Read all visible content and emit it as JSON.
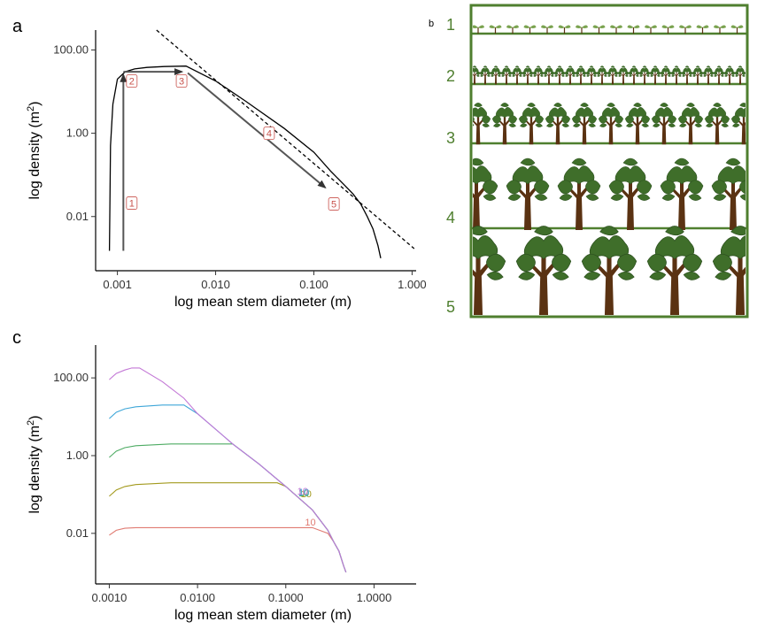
{
  "chart_data": [
    {
      "panel": "a",
      "type": "line",
      "xlabel": "log mean stem diameter (m)",
      "ylabel": "log density  (m²)",
      "ylabel_main": "log density  (m",
      "ylabel_sup": "2",
      "ylabel_end": ")",
      "xscale": "log",
      "yscale": "log",
      "xlim": [
        0.0006,
        1.1
      ],
      "ylim": [
        0.0005,
        300
      ],
      "xticks": [
        0.001,
        0.01,
        0.1,
        1.0
      ],
      "xtick_labels": [
        "0.001",
        "0.010",
        "0.100",
        "1.000"
      ],
      "yticks": [
        0.01,
        1.0,
        100.0
      ],
      "ytick_labels": [
        "0.01",
        "1.00",
        "100.00"
      ],
      "series": [
        {
          "style": "solid",
          "x": [
            0.00083,
            0.00085,
            0.0009,
            0.001,
            0.0012,
            0.0015,
            0.002,
            0.003,
            0.005,
            0.01,
            0.02,
            0.05,
            0.1,
            0.15,
            0.2,
            0.25,
            0.3,
            0.35,
            0.4,
            0.45,
            0.48
          ],
          "y": [
            0.0015,
            0.5,
            5,
            20,
            30,
            35,
            38,
            40,
            41,
            18,
            6,
            1.3,
            0.35,
            0.12,
            0.06,
            0.035,
            0.02,
            0.01,
            0.005,
            0.002,
            0.001
          ]
        },
        {
          "style": "dashed",
          "x": [
            0.0025,
            1.05
          ],
          "y": [
            300,
            0.0017
          ]
        }
      ],
      "arrows": [
        {
          "from": [
            0.00115,
            0.0015
          ],
          "to": [
            0.00115,
            25
          ]
        },
        {
          "from": [
            0.00115,
            30
          ],
          "to": [
            0.0045,
            30
          ]
        },
        {
          "from": [
            0.0052,
            28
          ],
          "to": [
            0.13,
            0.05
          ]
        }
      ],
      "step_labels": [
        {
          "text": "1",
          "x": 0.0014,
          "y": 0.021
        },
        {
          "text": "2",
          "x": 0.0014,
          "y": 18
        },
        {
          "text": "3",
          "x": 0.0045,
          "y": 18
        },
        {
          "text": "4",
          "x": 0.035,
          "y": 1.0
        },
        {
          "text": "5",
          "x": 0.16,
          "y": 0.02
        }
      ]
    },
    {
      "panel": "c",
      "type": "line",
      "xlabel": "log mean stem diameter (m)",
      "ylabel": "log density  (m²)",
      "ylabel_main": "log density  (m",
      "ylabel_sup": "2",
      "ylabel_end": ")",
      "xscale": "log",
      "yscale": "log",
      "xlim": [
        0.0007,
        3.0
      ],
      "ylim": [
        0.0005,
        700
      ],
      "xticks": [
        0.001,
        0.01,
        0.1,
        1.0
      ],
      "xtick_labels": [
        "0.0010",
        "0.0100",
        "0.1000",
        "1.0000"
      ],
      "yticks": [
        0.01,
        1.0,
        100.0
      ],
      "ytick_labels": [
        "0.01",
        "1.00",
        "100.00"
      ],
      "series": [
        {
          "color": "#e07b72",
          "x": [
            0.001,
            0.0012,
            0.0015,
            0.002,
            0.005,
            0.1,
            0.2,
            0.3,
            0.35,
            0.4,
            0.45,
            0.48
          ],
          "y": [
            0.009,
            0.012,
            0.0135,
            0.014,
            0.014,
            0.014,
            0.014,
            0.01,
            0.006,
            0.0035,
            0.0015,
            0.001
          ]
        },
        {
          "color": "#a39a1e",
          "x": [
            0.001,
            0.0012,
            0.0015,
            0.002,
            0.005,
            0.08,
            0.1,
            0.2,
            0.3,
            0.35,
            0.4,
            0.45,
            0.48
          ],
          "y": [
            0.09,
            0.13,
            0.16,
            0.18,
            0.2,
            0.2,
            0.16,
            0.04,
            0.012,
            0.006,
            0.0035,
            0.0015,
            0.001
          ]
        },
        {
          "color": "#4dab63",
          "x": [
            0.001,
            0.0012,
            0.0015,
            0.002,
            0.005,
            0.025,
            0.05,
            0.1,
            0.2,
            0.3,
            0.35,
            0.4,
            0.45,
            0.48
          ],
          "y": [
            0.9,
            1.3,
            1.6,
            1.8,
            2.0,
            2.0,
            0.6,
            0.16,
            0.04,
            0.012,
            0.006,
            0.0035,
            0.0015,
            0.001
          ]
        },
        {
          "color": "#3ea6d8",
          "x": [
            0.001,
            0.0012,
            0.0015,
            0.002,
            0.004,
            0.007,
            0.01,
            0.025,
            0.05,
            0.1,
            0.2,
            0.3,
            0.35,
            0.4,
            0.45,
            0.48
          ],
          "y": [
            9,
            13,
            16,
            18,
            20,
            20,
            12,
            2.0,
            0.6,
            0.16,
            0.04,
            0.012,
            0.006,
            0.0035,
            0.0015,
            0.001
          ]
        },
        {
          "color": "#c378d6",
          "x": [
            0.001,
            0.0012,
            0.0015,
            0.0018,
            0.0022,
            0.004,
            0.007,
            0.01,
            0.025,
            0.05,
            0.1,
            0.2,
            0.3,
            0.35,
            0.4,
            0.45,
            0.48
          ],
          "y": [
            90,
            130,
            160,
            180,
            180,
            80,
            30,
            12,
            2.0,
            0.6,
            0.16,
            0.04,
            0.012,
            0.006,
            0.0035,
            0.0015,
            0.001
          ]
        }
      ],
      "end_labels": [
        {
          "text": "10",
          "x": 0.19,
          "y": 0.016,
          "color": "#e07b72"
        },
        {
          "text": "10",
          "x": 0.17,
          "y": 0.085,
          "color": "#a39a1e"
        },
        {
          "text": "10",
          "x": 0.16,
          "y": 0.09,
          "color": "#4dab63"
        },
        {
          "text": "10",
          "x": 0.16,
          "y": 0.095,
          "color": "#3ea6d8"
        },
        {
          "text": "10",
          "x": 0.155,
          "y": 0.1,
          "color": "#c378d6"
        }
      ]
    }
  ],
  "panels": {
    "a": {
      "letter": "a"
    },
    "b": {
      "letter": "b",
      "stage_labels": [
        "1",
        "2",
        "3",
        "4",
        "5"
      ],
      "frame_color": "#4f7f2f",
      "trunk_color": "#5a3212",
      "leaf_color": "#3f6e2a"
    },
    "c": {
      "letter": "c"
    }
  }
}
